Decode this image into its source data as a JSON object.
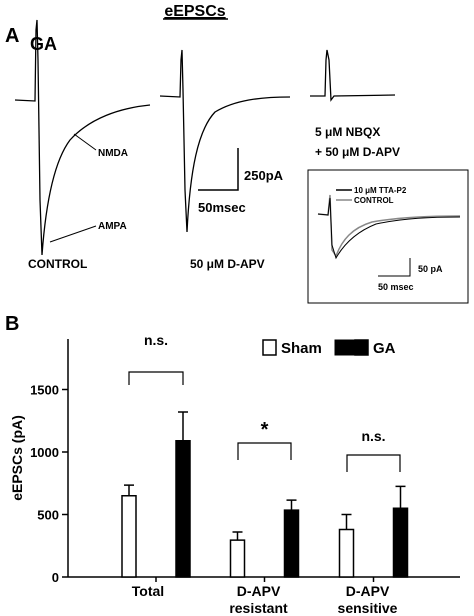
{
  "panel_a": {
    "label": "A",
    "title": "eEPSCs",
    "condition": "GA",
    "nmda": "NMDA",
    "ampa": "AMPA",
    "trace_labels": [
      "CONTROL",
      "50 μM D-APV"
    ],
    "nbqx_lines": [
      "5 μM NBQX",
      "+ 50 μM D-APV"
    ],
    "scale_y": "250pA",
    "scale_x": "50msec",
    "inset": {
      "legend": [
        "10 μM TTA-P2",
        "CONTROL"
      ],
      "scale_y": "50 pA",
      "scale_x": "50 msec"
    }
  },
  "chart_data": {
    "type": "bar",
    "label": "B",
    "ylabel": "eEPSCs (pA)",
    "categories": [
      "Total",
      "D-APV resistant",
      "D-APV sensitive"
    ],
    "series": [
      {
        "name": "Sham",
        "color": "#ffffff",
        "values": [
          650,
          295,
          380
        ],
        "errors": [
          85,
          65,
          120
        ]
      },
      {
        "name": "GA",
        "color": "#000000",
        "values": [
          1090,
          535,
          550
        ],
        "errors": [
          230,
          80,
          175
        ]
      }
    ],
    "annotations": [
      "n.s.",
      "*",
      "n.s."
    ],
    "ylim": [
      0,
      1900
    ],
    "yticks": [
      0,
      500,
      1000,
      1500
    ],
    "legend": "upper right"
  }
}
